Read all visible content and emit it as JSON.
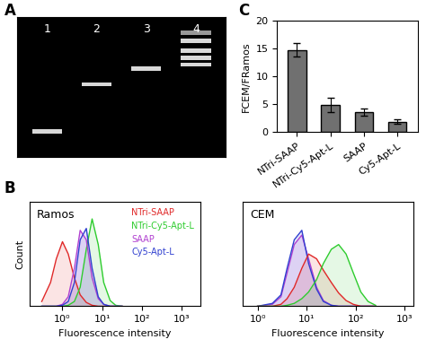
{
  "chart_data": [
    {
      "type": "gel",
      "title": "A",
      "categories": [
        "1",
        "2",
        "3",
        "4"
      ],
      "bands": [
        [
          0.82
        ],
        [
          0.48
        ],
        [
          0.37
        ],
        [
          0.11,
          0.17,
          0.24,
          0.29,
          0.34
        ]
      ],
      "ylim": [
        1,
        0
      ],
      "yticks": [],
      "tick_labels": "x"
    },
    {
      "type": "line",
      "title": "B",
      "annotation": "Ramos",
      "x_label": "Fluorescence intensity",
      "y_label": "Count",
      "log": "x",
      "xlim": [
        0.15,
        3000
      ],
      "xticks": [
        {
          "value": 1,
          "label": "10⁰"
        },
        {
          "value": 10,
          "label": "10¹"
        },
        {
          "value": 100,
          "label": "10²"
        },
        {
          "value": 1000,
          "label": "10³"
        }
      ],
      "ylim": [
        0,
        110
      ],
      "yticks": [],
      "tick_labels": "x",
      "legend": "upper right",
      "x": [
        0.3,
        0.5,
        0.7,
        1,
        1.4,
        2,
        2.8,
        4,
        5.6,
        8,
        11,
        16,
        22,
        32
      ],
      "series": [
        {
          "name": "NTri-SAAP",
          "color": "#e02828",
          "values": [
            5,
            25,
            50,
            68,
            55,
            30,
            12,
            4,
            1,
            0,
            0,
            0,
            0,
            0
          ]
        },
        {
          "name": "NTri-Cy5-Apt-L",
          "color": "#2ecc2e",
          "values": [
            0,
            0,
            0,
            0,
            1,
            5,
            20,
            60,
            92,
            65,
            25,
            6,
            1,
            0
          ]
        },
        {
          "name": "SAAP",
          "color": "#b040d0",
          "values": [
            0,
            0,
            0,
            2,
            10,
            40,
            80,
            70,
            30,
            8,
            2,
            0,
            0,
            0
          ]
        },
        {
          "name": "Cy5-Apt-L",
          "color": "#3040d0",
          "values": [
            0,
            0,
            0,
            1,
            5,
            25,
            70,
            82,
            40,
            10,
            2,
            0,
            0,
            0
          ]
        }
      ]
    },
    {
      "type": "line",
      "annotation": "CEM",
      "x_label": "Fluorescence intensity",
      "log": "x",
      "xlim": [
        0.5,
        1500
      ],
      "xticks": [
        {
          "value": 1,
          "label": "10⁰"
        },
        {
          "value": 10,
          "label": "10¹"
        },
        {
          "value": 100,
          "label": "10²"
        },
        {
          "value": 1000,
          "label": "10³"
        }
      ],
      "ylim": [
        0,
        110
      ],
      "yticks": [],
      "tick_labels": "x",
      "x": [
        1,
        2,
        3,
        4,
        5.6,
        8,
        11,
        16,
        22,
        32,
        45,
        64,
        90,
        128,
        180,
        256
      ],
      "series": [
        {
          "color": "#b040d0",
          "values": [
            0,
            2,
            10,
            35,
            65,
            75,
            50,
            20,
            6,
            1,
            0,
            0,
            0,
            0,
            0,
            0
          ]
        },
        {
          "color": "#3040d0",
          "values": [
            0,
            3,
            12,
            40,
            70,
            80,
            45,
            18,
            5,
            1,
            0,
            0,
            0,
            0,
            0,
            0
          ]
        },
        {
          "color": "#e02828",
          "values": [
            0,
            0,
            2,
            8,
            20,
            40,
            55,
            50,
            38,
            25,
            14,
            6,
            2,
            0,
            0,
            0
          ]
        },
        {
          "color": "#2ecc2e",
          "values": [
            0,
            0,
            0,
            1,
            3,
            8,
            15,
            28,
            45,
            60,
            65,
            55,
            35,
            15,
            5,
            1
          ]
        }
      ]
    },
    {
      "type": "bar",
      "title": "C",
      "y_label": "FCEM/FRamos",
      "categories": [
        "NTri-SAAP",
        "NTri-Cy5-Apt-L",
        "SAAP",
        "Cy5-Apt-L"
      ],
      "values": [
        14.8,
        4.9,
        3.6,
        1.9
      ],
      "errors": [
        1.2,
        1.3,
        0.6,
        0.4
      ],
      "color": "#707070",
      "ylim": [
        0,
        20
      ],
      "yticks": [
        0,
        5,
        10,
        15,
        20
      ]
    }
  ]
}
